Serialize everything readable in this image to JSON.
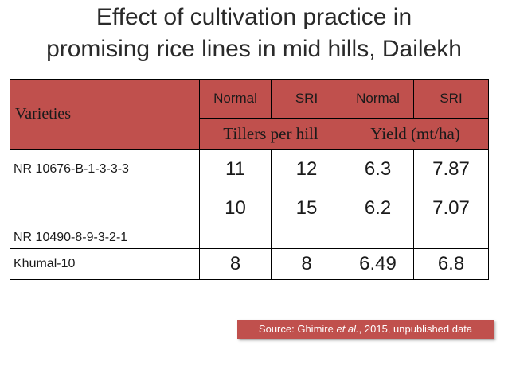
{
  "title": {
    "line1": "Effect of cultivation practice in",
    "line2": "promising rice lines in mid hills, Dailekh"
  },
  "table": {
    "header": {
      "varieties": "Varieties",
      "methods": [
        "Normal",
        "SRI",
        "Normal",
        "SRI"
      ],
      "groups": [
        "Tillers per hill",
        "Yield (mt/ha)"
      ]
    },
    "rows": [
      {
        "variety": "NR 10676-B-1-3-3-3",
        "tillers_normal": "11",
        "tillers_sri": "12",
        "yield_normal": "6.3",
        "yield_sri": "7.87"
      },
      {
        "variety": "NR 10490-8-9-3-2-1",
        "tillers_normal": "10",
        "tillers_sri": "15",
        "yield_normal": "6.2",
        "yield_sri": "7.07"
      },
      {
        "variety": "Khumal-10",
        "tillers_normal": "8",
        "tillers_sri": "8",
        "yield_normal": "6.49",
        "yield_sri": "6.8"
      }
    ]
  },
  "source": {
    "prefix": "Source: Ghimire ",
    "etal": "et al.",
    "suffix": ", 2015, unpublished data"
  },
  "colors": {
    "header_bg": "#c0504d",
    "source_bg": "#c0504d",
    "source_text": "#ffffff"
  }
}
